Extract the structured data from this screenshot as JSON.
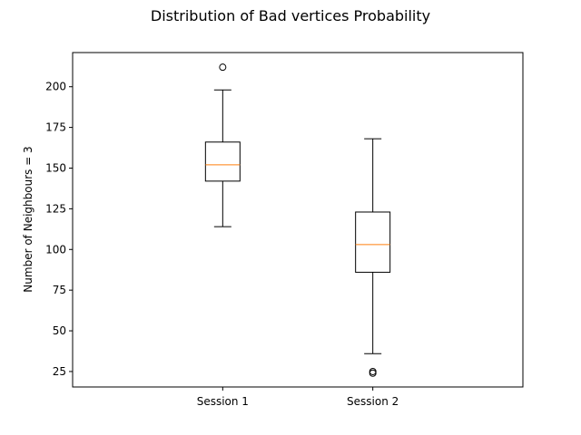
{
  "chart_data": {
    "type": "box",
    "title": "Distribution of Bad vertices Probability",
    "xlabel": "",
    "ylabel": "Number of Neighbours = 3",
    "ylim": [
      15.5,
      221
    ],
    "yticks": [
      25,
      50,
      75,
      100,
      125,
      150,
      175,
      200
    ],
    "grid": false,
    "categories": [
      "Session 1",
      "Session 2"
    ],
    "boxes": [
      {
        "label": "Session 1",
        "whisker_low": 114,
        "q1": 142,
        "median": 152,
        "q3": 166,
        "whisker_high": 198,
        "outliers": [
          212
        ]
      },
      {
        "label": "Session 2",
        "whisker_low": 36,
        "q1": 86,
        "median": 103,
        "q3": 123,
        "whisker_high": 168,
        "outliers": [
          24,
          25
        ]
      }
    ],
    "colors": {
      "box": "#000000",
      "median": "#ff7f0e",
      "background": "#ffffff"
    }
  }
}
